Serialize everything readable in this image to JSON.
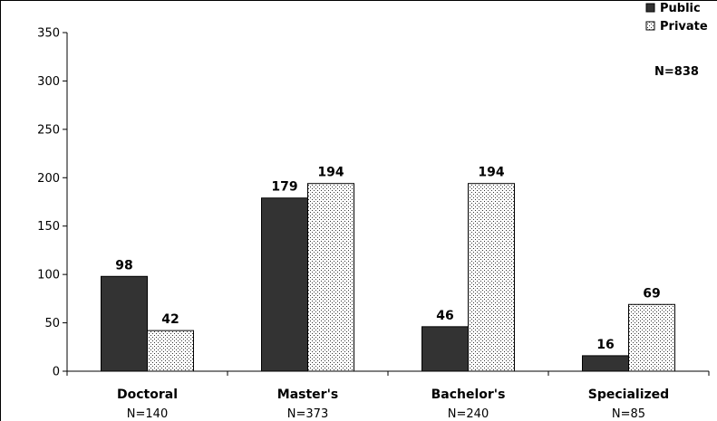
{
  "chart_data": {
    "type": "bar",
    "categories": [
      "Doctoral",
      "Master's",
      "Bachelor's",
      "Specialized"
    ],
    "category_n_labels": [
      "N=140",
      "N=373",
      "N=240",
      "N=85"
    ],
    "series": [
      {
        "name": "Public",
        "values": [
          98,
          179,
          46,
          16
        ],
        "color": "#333333"
      },
      {
        "name": "Private",
        "values": [
          42,
          194,
          194,
          69
        ],
        "color": "#ffffff",
        "pattern": "dotted"
      }
    ],
    "ylim": [
      0,
      350
    ],
    "yticks": [
      0,
      50,
      100,
      150,
      200,
      250,
      300,
      350
    ],
    "total_label": "N=838",
    "legend": "top-right",
    "grid": false
  }
}
